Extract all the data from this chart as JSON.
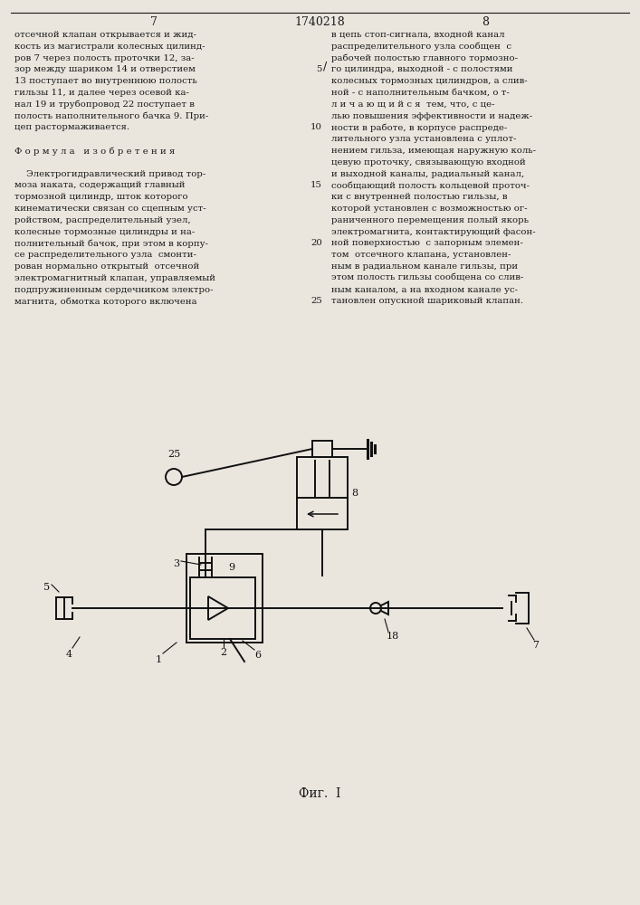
{
  "title": "1740218",
  "page_left": "7",
  "page_right": "8",
  "caption": "Фиг.  I",
  "bg_color": "#eae6de",
  "text_color": "#1a1a1a",
  "text_left": [
    "отсечной клапан открывается и жид-",
    "кость из магистрали колесных цилинд-",
    "ров 7 через полость проточки 12, за-",
    "зор между шариком 14 и отверстием",
    "13 поступает во внутреннюю полость",
    "гильзы 11, и далее через осевой ка-",
    "нал 19 и трубопровод 22 поступает в",
    "полость наполнительного бачка 9. При-",
    "цеп растормаживается.",
    "",
    "Ф о р м у л а   и з о б р е т е н и я",
    "",
    "    Электрогидравлический привод тор-",
    "моза наката, содержащий главный",
    "тормозной цилиндр, шток которого",
    "кинематически связан со сцепным уст-",
    "ройством, распределительный узел,",
    "колесные тормозные цилиндры и на-",
    "полнительный бачок, при этом в корпу-",
    "се распределительного узла  смонти-",
    "рован нормально открытый  отсечной",
    "электромагнитный клапан, управляемый",
    "подпружиненным сердечником электро-",
    "магнита, обмотка которого включена"
  ],
  "text_right": [
    "в цепь стоп-сигнала, входной канал",
    "распределительного узла сообщен  с",
    "рабочей полостью главного тормозно-",
    "го цилиндра, выходной - с полостями",
    "колесных тормозных цилиндров, а слив-",
    "ной - с наполнительным бачком, о т-",
    "л и ч а ю щ и й с я  тем, что, с це-",
    "лью повышения эффективности и надеж-",
    "ности в работе, в корпусе распреде-",
    "лительного узла установлена с уплот-",
    "нением гильза, имеющая наружную коль-",
    "цевую проточку, связывающую входной",
    "и выходной каналы, радиальный канал,",
    "сообщающий полость кольцевой проточ-",
    "ки с внутренней полостью гильзы, в",
    "которой установлен с возможностью ог-",
    "раниченного перемещения полый якорь",
    "электромагнита, контактирующий фасон-",
    "ной поверхностью  с запорным элемен-",
    "том  отсечного клапана, установлен-",
    "ным в радиальном канале гильзы, при",
    "этом полость гильзы сообщена со слив-",
    "ным каналом, а на входном канале ус-",
    "тановлен опускной шариковый клапан."
  ]
}
